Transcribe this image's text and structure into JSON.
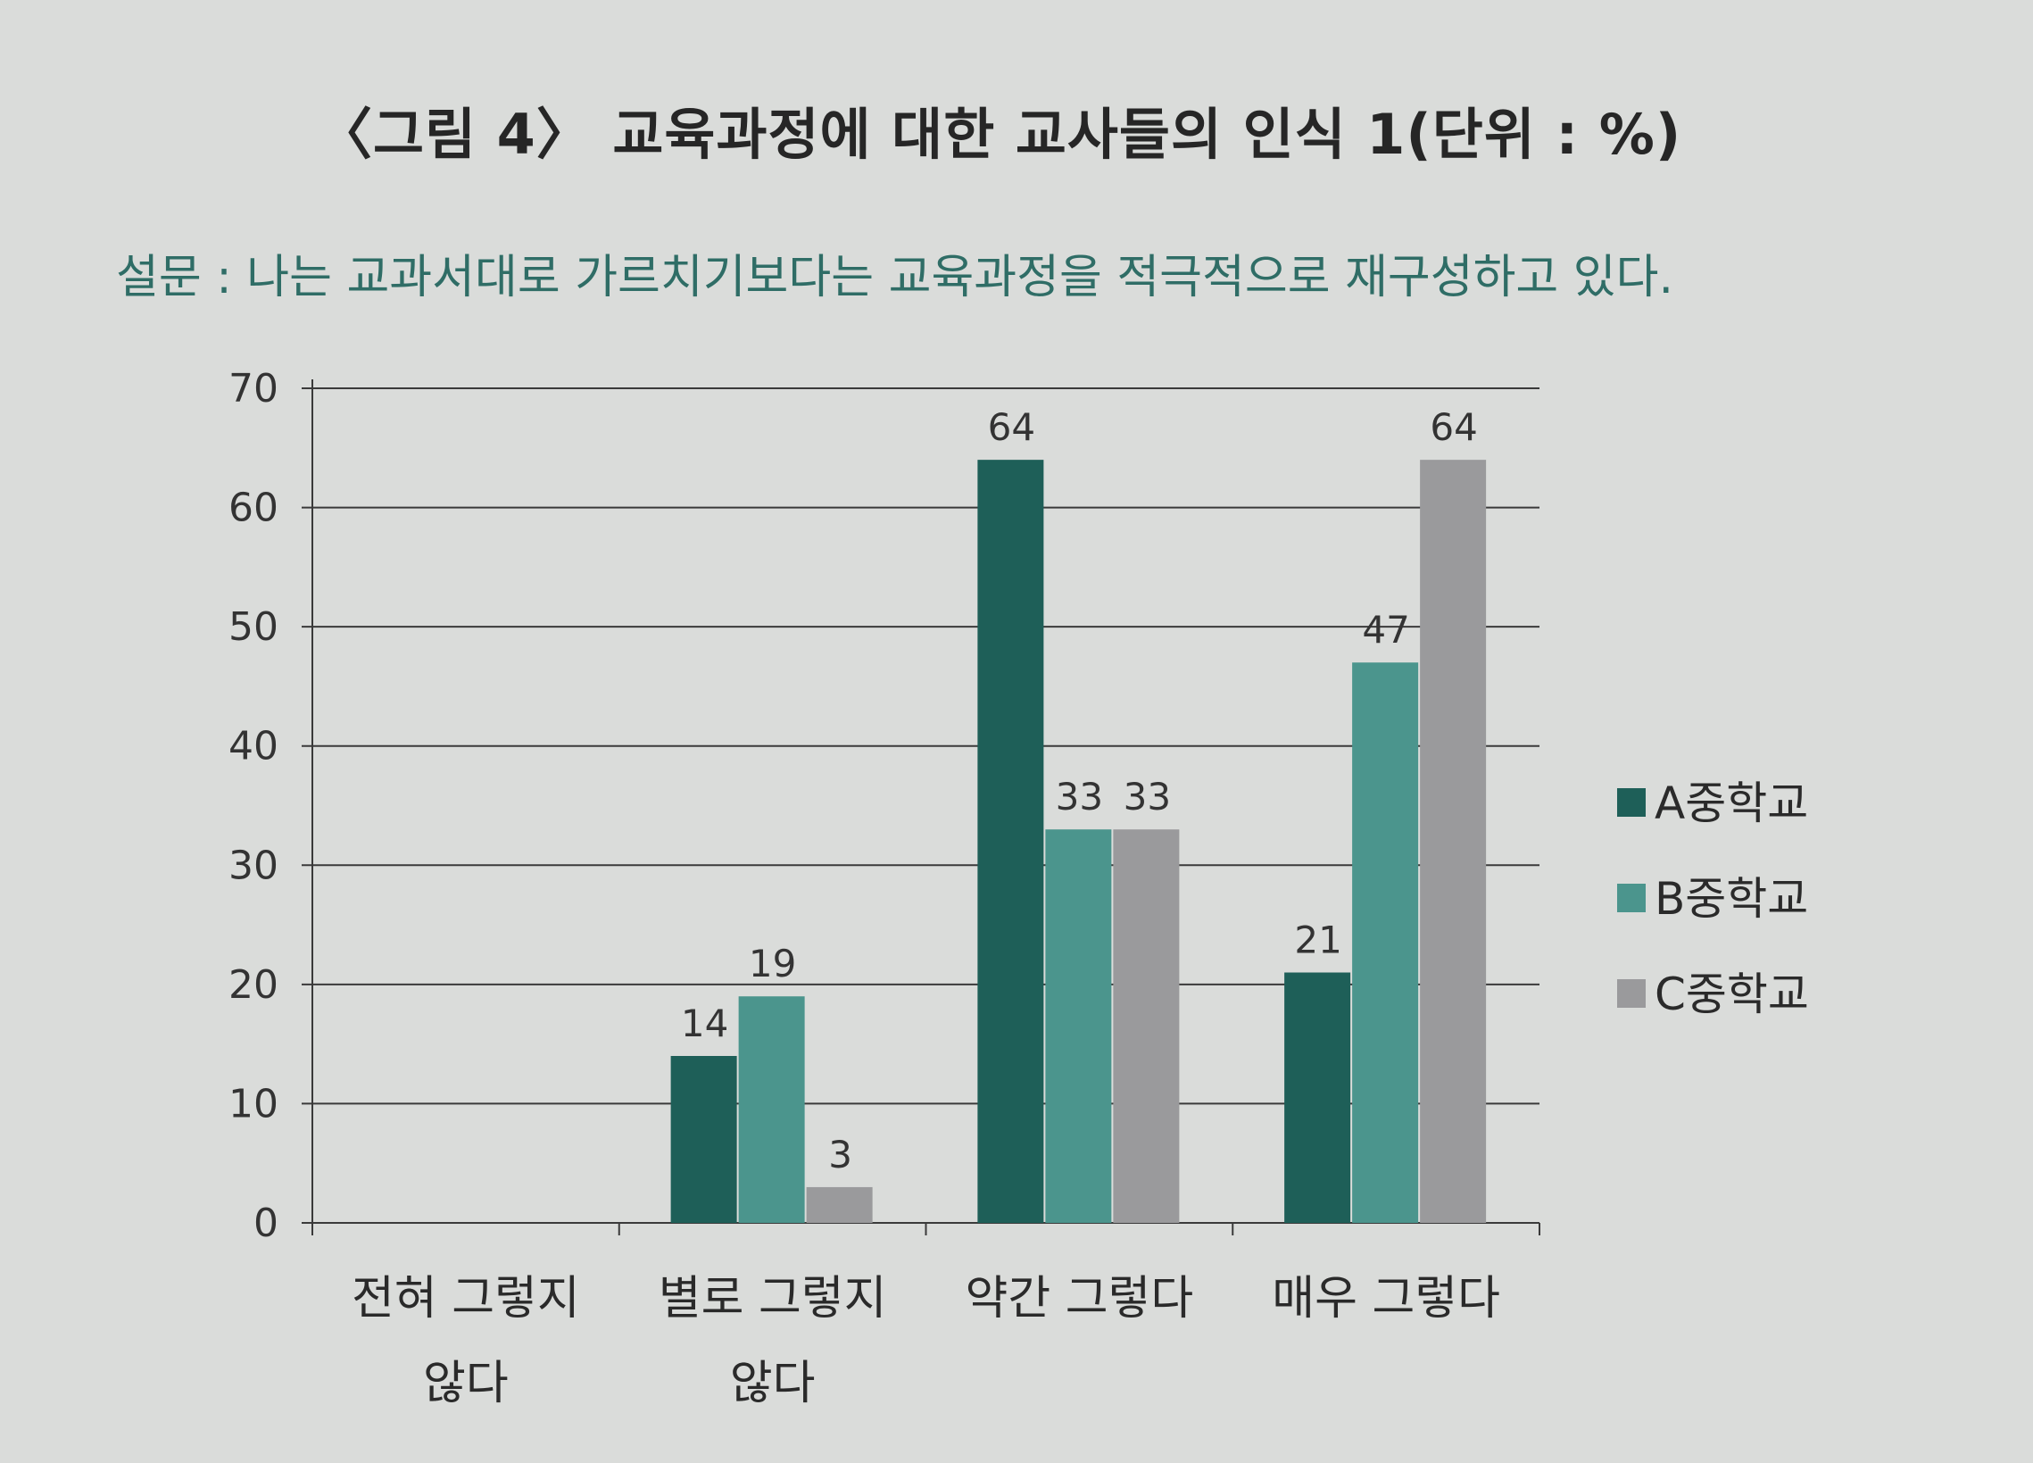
{
  "title": "〈그림 4〉 교육과정에 대한 교사들의 인식 1(단위 : %)",
  "question": "설문 : 나는 교과서대로 가르치기보다는 교육과정을 적극적으로 재구성하고 있다.",
  "colors": {
    "A중학교": "#1e5f58",
    "B중학교": "#4b958d",
    "C중학교": "#9a9a9c",
    "grid": "#3a3a3a"
  },
  "chart_data": {
    "type": "bar",
    "title": "〈그림 4〉 교육과정에 대한 교사들의 인식 1(단위 : %)",
    "categories": [
      [
        "전혀 그렇지",
        "않다"
      ],
      [
        "별로 그렇지",
        "않다"
      ],
      [
        "약간 그렇다"
      ],
      [
        "매우 그렇다"
      ]
    ],
    "series": [
      {
        "name": "A중학교",
        "values": [
          null,
          14,
          64,
          21
        ],
        "labels": [
          "",
          "14",
          "64",
          "21"
        ]
      },
      {
        "name": "B중학교",
        "values": [
          null,
          19,
          33,
          47
        ],
        "labels": [
          "",
          "19",
          "33",
          "47"
        ]
      },
      {
        "name": "C중학교",
        "values": [
          null,
          3,
          33,
          64
        ],
        "labels": [
          "",
          "3",
          "33",
          "64"
        ]
      }
    ],
    "ylim": [
      0,
      70
    ],
    "yticks": [
      0,
      10,
      20,
      30,
      40,
      50,
      60,
      70
    ],
    "grid": true,
    "legend": "right",
    "xlabel": "",
    "ylabel": ""
  }
}
